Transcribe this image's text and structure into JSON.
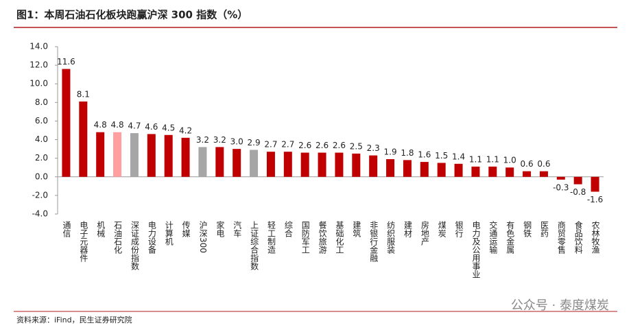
{
  "chart_data": {
    "type": "bar",
    "title": "图1：本周石油石化板块跑赢沪深 300 指数（%）",
    "source": "资料来源：iFind，民生证券研究院",
    "watermark": "公众号 · 泰度煤炭",
    "categories": [
      "通信",
      "电子元器件",
      "机械",
      "石油石化",
      "深证成份指数",
      "电力设备",
      "计算机",
      "传媒",
      "沪深300",
      "家电",
      "汽车",
      "上证综合指数",
      "轻工制造",
      "综合",
      "国防军工",
      "餐饮旅游",
      "基础化工",
      "建筑",
      "非银行金融",
      "纺织服装",
      "建材",
      "房地产",
      "煤炭",
      "银行",
      "电力及公用事业",
      "交通运输",
      "有色金属",
      "钢铁",
      "医药",
      "商贸零售",
      "食品饮料",
      "农林牧渔"
    ],
    "values": [
      11.6,
      8.1,
      4.8,
      4.8,
      4.7,
      4.6,
      4.5,
      4.2,
      3.2,
      3.2,
      3.0,
      2.9,
      2.7,
      2.7,
      2.6,
      2.6,
      2.6,
      2.5,
      2.3,
      1.9,
      1.8,
      1.6,
      1.5,
      1.4,
      1.1,
      1.1,
      1.0,
      0.6,
      0.6,
      -0.3,
      -0.8,
      -1.6
    ],
    "value_labels": [
      "11.6",
      "8.1",
      "4.8",
      "4.8",
      "4.7",
      "4.6",
      "4.5",
      "4.2",
      "3.2",
      "3.2",
      "3.0",
      "2.9",
      "2.7",
      "2.7",
      "2.6",
      "2.6",
      "2.6",
      "2.5",
      "2.3",
      "1.9",
      "1.8",
      "1.6",
      "1.5",
      "1.4",
      "1.1",
      "1.1",
      "1.0",
      "0.6",
      "0.6",
      "-0.3",
      "-0.8",
      "-1.6"
    ],
    "colors": [
      "#c00000",
      "#c00000",
      "#c00000",
      "#ff9f9f",
      "#a6a6a6",
      "#c00000",
      "#c00000",
      "#c00000",
      "#a6a6a6",
      "#c00000",
      "#c00000",
      "#a6a6a6",
      "#c00000",
      "#c00000",
      "#c00000",
      "#c00000",
      "#c00000",
      "#c00000",
      "#c00000",
      "#c00000",
      "#c00000",
      "#c00000",
      "#c00000",
      "#c00000",
      "#c00000",
      "#c00000",
      "#c00000",
      "#c00000",
      "#c00000",
      "#c00000",
      "#c00000",
      "#c00000"
    ],
    "ylim": [
      -4,
      14
    ],
    "yticks": [
      {
        "value": -4,
        "label": "-4.0"
      },
      {
        "value": -2,
        "label": "-2.0"
      },
      {
        "value": 0,
        "label": "0.0"
      },
      {
        "value": 2,
        "label": "2.0"
      },
      {
        "value": 4,
        "label": "4.0"
      },
      {
        "value": 6,
        "label": "6.0"
      },
      {
        "value": 8,
        "label": "8.0"
      },
      {
        "value": 10,
        "label": "10.0"
      },
      {
        "value": 12,
        "label": "12.0"
      },
      {
        "value": 14,
        "label": "14.0"
      }
    ]
  }
}
